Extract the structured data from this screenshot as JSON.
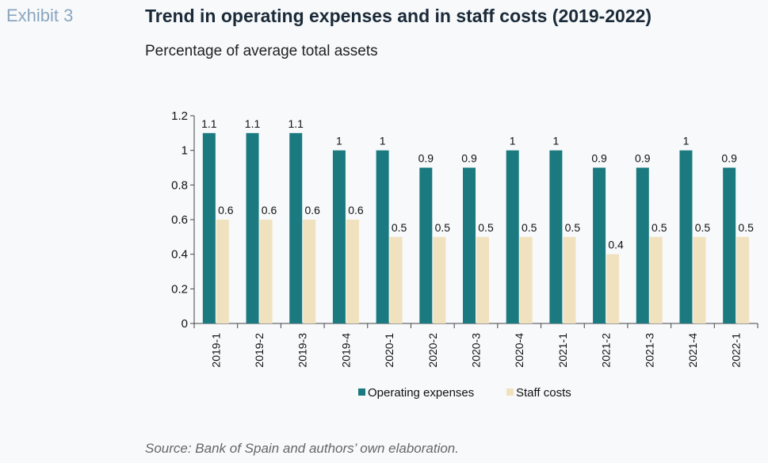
{
  "header": {
    "exhibit": "Exhibit 3",
    "title": "Trend in operating expenses and in staff costs (2019-2022)",
    "subtitle": "Percentage of average total assets"
  },
  "footer": {
    "source": "Source: Bank of Spain and authors’ own elaboration."
  },
  "colors": {
    "operating": "#1b7a80",
    "staff": "#f1e2bf"
  },
  "chart_data": {
    "type": "bar",
    "categories": [
      "2019-1",
      "2019-2",
      "2019-3",
      "2019-4",
      "2020-1",
      "2020-2",
      "2020-3",
      "2020-4",
      "2021-1",
      "2021-2",
      "2021-3",
      "2021-4",
      "2022-1"
    ],
    "series": [
      {
        "name": "Operating expenses",
        "values": [
          1.1,
          1.1,
          1.1,
          1,
          1,
          0.9,
          0.9,
          1,
          1,
          0.9,
          0.9,
          1,
          0.9
        ]
      },
      {
        "name": "Staff costs",
        "values": [
          0.6,
          0.6,
          0.6,
          0.6,
          0.5,
          0.5,
          0.5,
          0.5,
          0.5,
          0.4,
          0.5,
          0.5,
          0.5
        ]
      }
    ],
    "data_labels": [
      [
        "1.1",
        "1.1",
        "1.1",
        "1",
        "1",
        "0.9",
        "0.9",
        "1",
        "1",
        "0.9",
        "0.9",
        "1",
        "0.9"
      ],
      [
        "0.6",
        "0.6",
        "0.6",
        "0.6",
        "0.5",
        "0.5",
        "0.5",
        "0.5",
        "0.5",
        "0.4",
        "0.5",
        "0.5",
        "0.5"
      ]
    ],
    "y_ticks": [
      "0",
      "0.2",
      "0.4",
      "0.6",
      "0.8",
      "1",
      "1.2"
    ],
    "ylim": [
      0,
      1.2
    ],
    "grid": false,
    "legend_position": "bottom"
  }
}
